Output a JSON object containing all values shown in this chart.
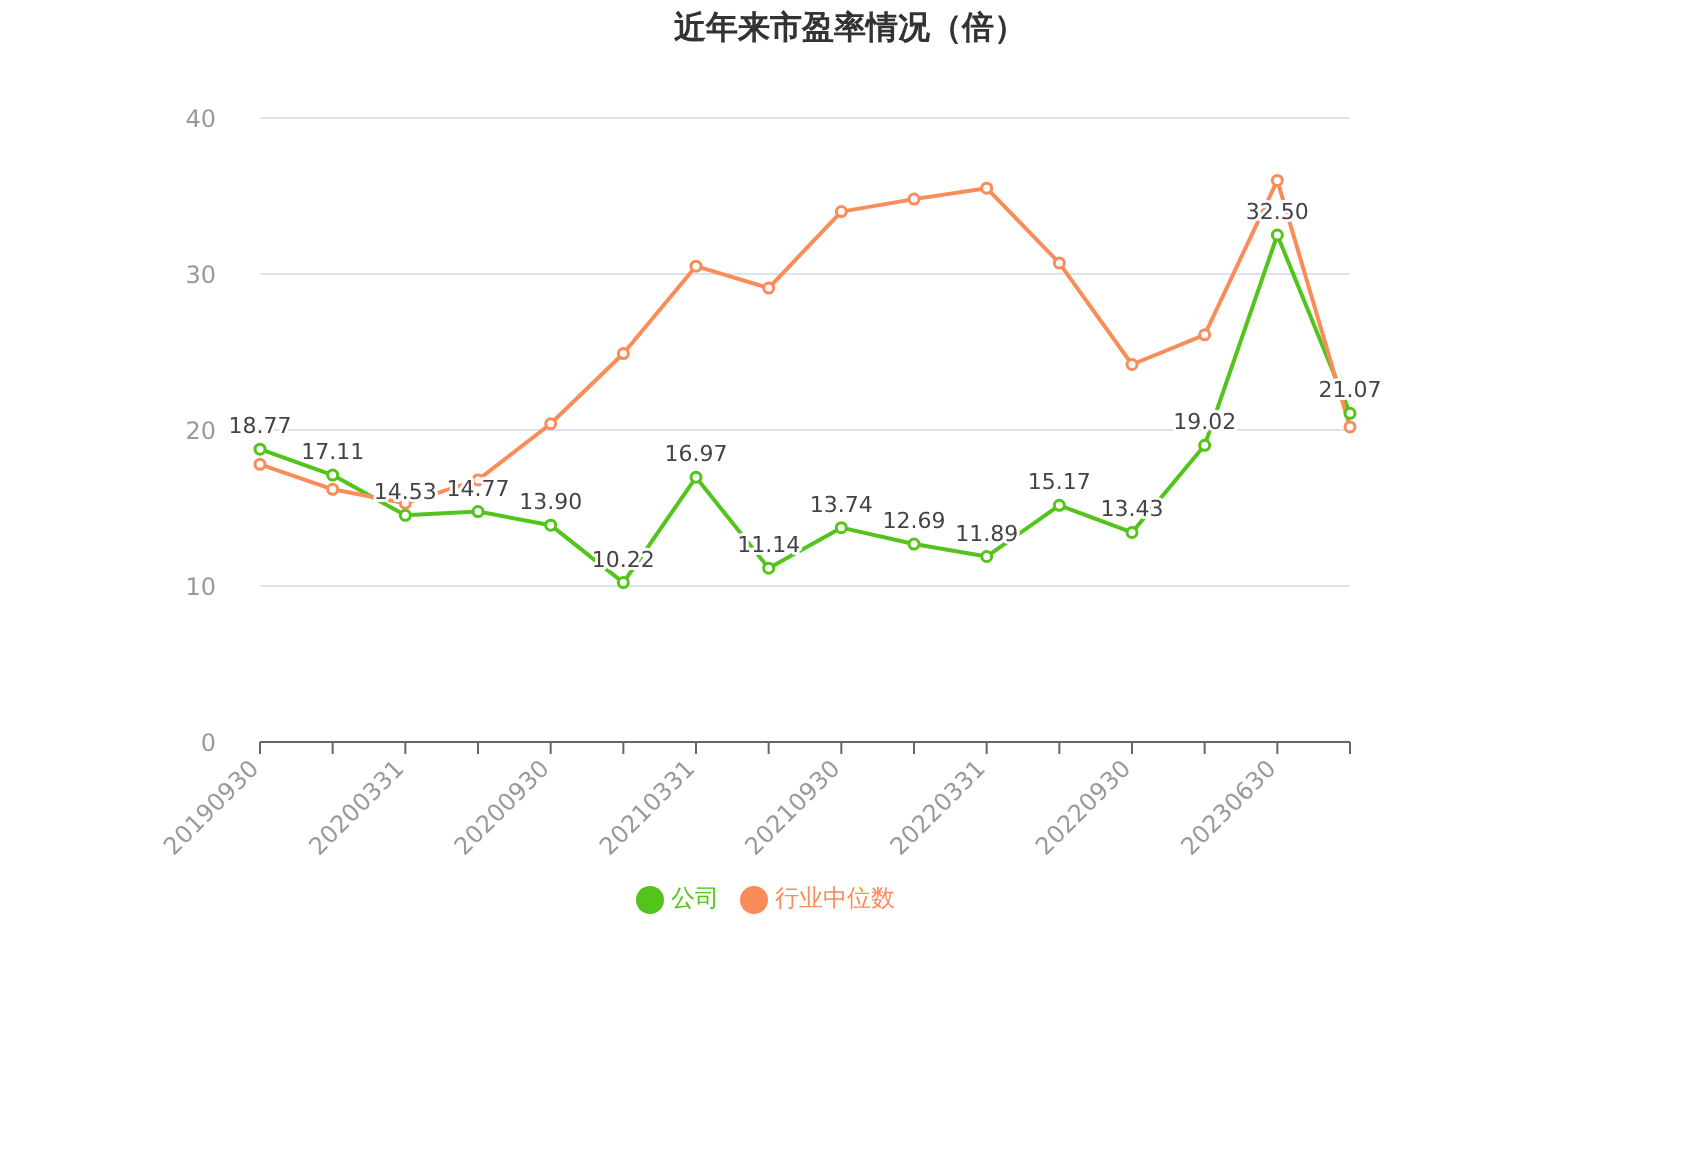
{
  "chart_data": {
    "type": "line",
    "title": "近年来市盈率情况（倍）",
    "categories": [
      "20190930",
      null,
      "20200331",
      null,
      "20200930",
      null,
      "20210331",
      null,
      "20210930",
      null,
      "20220331",
      null,
      "20220930",
      null,
      "20230630",
      null
    ],
    "series": [
      {
        "name": "公司",
        "color": "#52c41a",
        "values": [
          18.77,
          17.11,
          14.53,
          14.77,
          13.9,
          10.22,
          16.97,
          11.14,
          13.74,
          12.69,
          11.89,
          15.17,
          13.43,
          19.02,
          32.5,
          21.07
        ],
        "value_labels": [
          "18.77",
          "17.11",
          "14.53",
          "14.77",
          "13.90",
          "10.22",
          "16.97",
          "11.14",
          "13.74",
          "12.69",
          "11.89",
          "15.17",
          "13.43",
          "19.02",
          "32.50",
          "21.07"
        ]
      },
      {
        "name": "行业中位数",
        "color": "#fa8c5a",
        "values": [
          17.8,
          16.2,
          15.3,
          16.8,
          20.4,
          24.9,
          30.5,
          29.1,
          34.0,
          34.8,
          35.5,
          30.7,
          24.2,
          26.1,
          36.0,
          20.2
        ]
      }
    ],
    "ylim": [
      0,
      40
    ],
    "yticks": [
      0,
      10,
      20,
      30,
      40
    ],
    "grid": "y",
    "legend": "bottom",
    "marker": "circle",
    "line_style": "solid"
  }
}
